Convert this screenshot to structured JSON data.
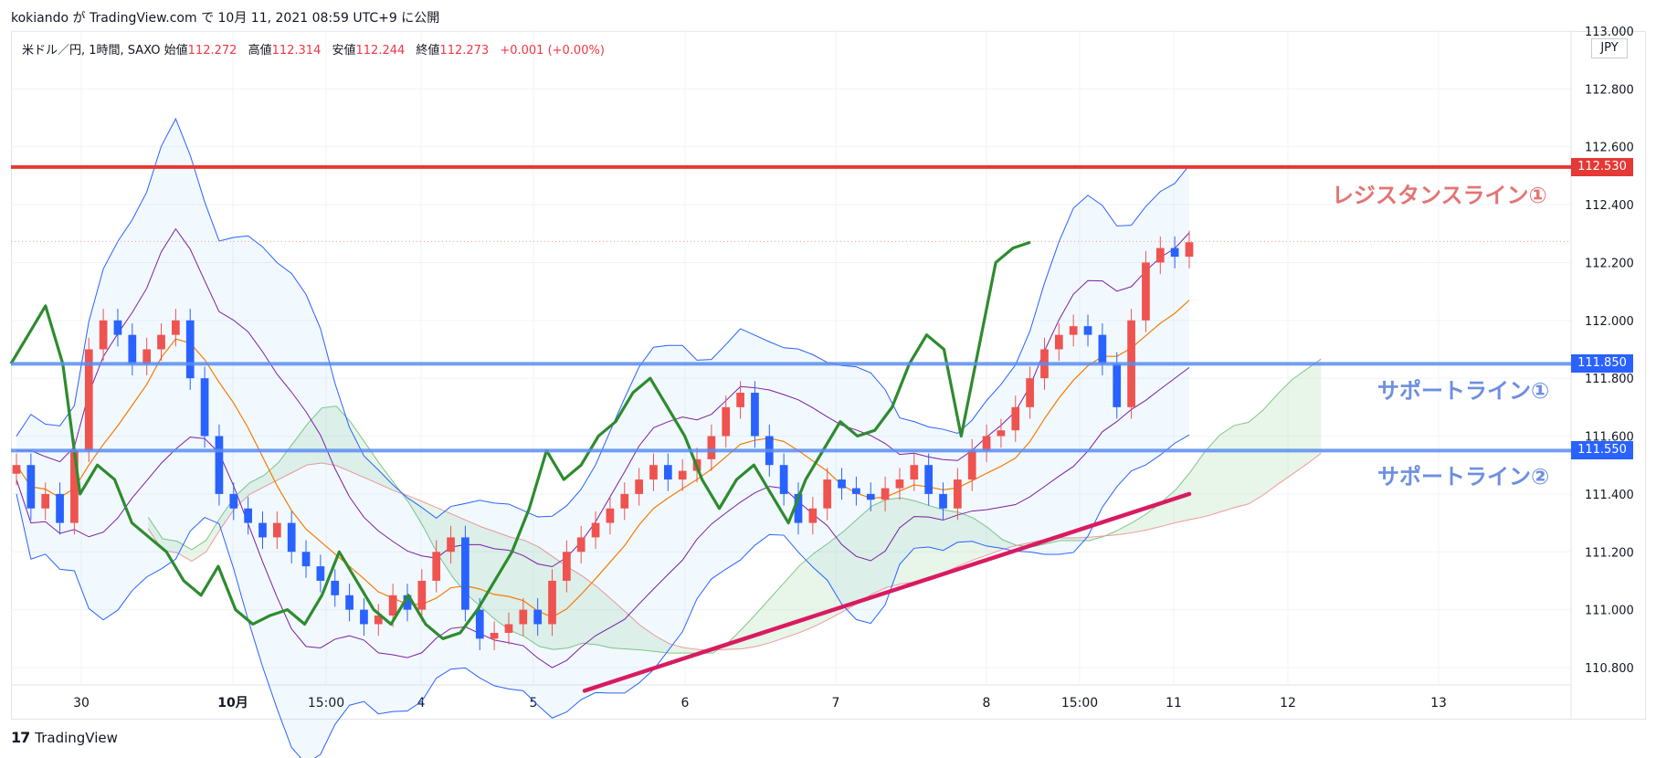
{
  "header": {
    "published": "kokiando が TradingView.com で 10月 11, 2021 08:59 UTC+9 に公開"
  },
  "legend": {
    "symbol": "米ドル／円, 1時間, SAXO",
    "open_label": "始値",
    "open": "112.272",
    "high_label": "高値",
    "high": "112.314",
    "low_label": "安値",
    "low": "112.244",
    "close_label": "終値",
    "close": "112.273",
    "change": "+0.001 (+0.00%)"
  },
  "currency": "JPY",
  "footer": {
    "brand": "TradingView"
  },
  "colors": {
    "resistance": "#e53935",
    "support": "#5b8def",
    "trend": "#d81b60",
    "lagging": "#2e8b2e",
    "up_candle": "#ef5350",
    "down_candle": "#2962ff",
    "bb": "#2962ff",
    "bb_inner": "#7b1fa2",
    "ma": "#f57c00",
    "cloud_bull": "#a5d6a7",
    "cloud_bear": "#ef9a9a"
  },
  "chart_data": {
    "type": "candlestick",
    "instrument": "米ドル／円",
    "timeframe": "1時間",
    "ylim": [
      110.74,
      113.0
    ],
    "y_ticks": [
      "113.000",
      "112.800",
      "112.600",
      "112.400",
      "112.200",
      "112.000",
      "111.800",
      "111.600",
      "111.400",
      "111.200",
      "111.000",
      "110.800"
    ],
    "x_ticks": [
      "30",
      "10月",
      "15:00",
      "4",
      "5",
      "6",
      "7",
      "8",
      "15:00",
      "11",
      "12",
      "13"
    ],
    "last_price": 112.273,
    "horizontal_lines": [
      {
        "name": "レジスタンスライン①",
        "value": 112.53,
        "price_label": "112.530"
      },
      {
        "name": "サポートライン①",
        "value": 111.85,
        "price_label": "111.850"
      },
      {
        "name": "サポートライン②",
        "value": 111.55,
        "price_label": "111.550"
      }
    ],
    "trend_line": {
      "from": [
        "5",
        110.72
      ],
      "to": [
        "11",
        111.4
      ]
    },
    "close_path": [
      111.5,
      111.35,
      111.4,
      111.3,
      111.55,
      111.9,
      112.0,
      111.95,
      111.85,
      111.9,
      111.95,
      112.0,
      111.8,
      111.6,
      111.4,
      111.35,
      111.3,
      111.25,
      111.3,
      111.2,
      111.15,
      111.1,
      111.05,
      111.0,
      110.95,
      110.98,
      111.05,
      111.0,
      111.1,
      111.2,
      111.25,
      111.0,
      110.9,
      110.92,
      110.95,
      111.0,
      110.95,
      111.1,
      111.2,
      111.25,
      111.3,
      111.35,
      111.4,
      111.45,
      111.5,
      111.45,
      111.48,
      111.52,
      111.6,
      111.7,
      111.75,
      111.6,
      111.5,
      111.4,
      111.3,
      111.35,
      111.45,
      111.42,
      111.4,
      111.38,
      111.42,
      111.45,
      111.5,
      111.4,
      111.35,
      111.45,
      111.55,
      111.6,
      111.62,
      111.7,
      111.8,
      111.9,
      111.95,
      111.98,
      111.95,
      111.85,
      111.7,
      112.0,
      112.2,
      112.25,
      112.22,
      112.27
    ],
    "lagging_span": [
      111.85,
      111.95,
      112.05,
      111.85,
      111.4,
      111.5,
      111.45,
      111.3,
      111.25,
      111.2,
      111.1,
      111.05,
      111.15,
      111.0,
      110.95,
      110.98,
      111.0,
      110.95,
      111.05,
      111.2,
      111.1,
      111.0,
      110.95,
      111.05,
      110.95,
      110.9,
      110.92,
      111.0,
      111.1,
      111.2,
      111.35,
      111.55,
      111.45,
      111.5,
      111.6,
      111.65,
      111.75,
      111.8,
      111.7,
      111.6,
      111.45,
      111.35,
      111.45,
      111.5,
      111.4,
      111.3,
      111.45,
      111.55,
      111.65,
      111.6,
      111.62,
      111.7,
      111.85,
      111.95,
      111.9,
      111.6,
      111.9,
      112.2,
      112.25,
      112.27
    ]
  },
  "annotations": {
    "resistance1": "レジスタンスライン①",
    "support1": "サポートライン①",
    "support2": "サポートライン②"
  }
}
